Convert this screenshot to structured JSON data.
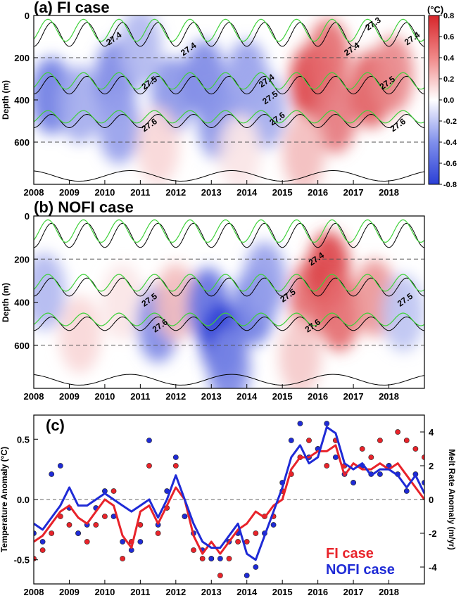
{
  "figure": {
    "panel_a_title": "(a) FI case",
    "panel_b_title": "(b) NOFI case",
    "panel_c_title": "(c)",
    "colorbar_unit": "(°C)",
    "colors": {
      "fi": "#e8232a",
      "nofi": "#1f2bd6",
      "warm": "#d7262b",
      "cold": "#2b3fd6",
      "green_contour": "#3fd13a"
    }
  },
  "chart_data": [
    {
      "type": "heatmap",
      "name": "FI case",
      "title": "(a) FI case",
      "xlabel": "",
      "ylabel": "Depth (m)",
      "x_ticks": [
        "2008",
        "2009",
        "2010",
        "2011",
        "2012",
        "2013",
        "2014",
        "2015",
        "2016",
        "2017",
        "2018"
      ],
      "y_ticks": [
        0,
        200,
        400,
        600
      ],
      "xlim": [
        2008,
        2019
      ],
      "ylim": [
        800,
        0
      ],
      "colorbar": {
        "ticks": [
          0.8,
          0.6,
          0.4,
          0.2,
          0.0,
          -0.2,
          -0.4,
          -0.6,
          -0.8
        ],
        "unit": "(°C)",
        "range": [
          -0.8,
          0.8
        ]
      },
      "anomaly_blobs": [
        {
          "t": 2008.5,
          "z": 380,
          "v": -0.55
        },
        {
          "t": 2009.3,
          "z": 420,
          "v": -0.35
        },
        {
          "t": 2010.3,
          "z": 300,
          "v": -0.5
        },
        {
          "t": 2010.4,
          "z": 520,
          "v": -0.4
        },
        {
          "t": 2011.0,
          "z": 150,
          "v": -0.3
        },
        {
          "t": 2011.9,
          "z": 380,
          "v": -0.45
        },
        {
          "t": 2012.8,
          "z": 300,
          "v": -0.5
        },
        {
          "t": 2013.2,
          "z": 500,
          "v": -0.45
        },
        {
          "t": 2014.0,
          "z": 300,
          "v": -0.4
        },
        {
          "t": 2014.5,
          "z": 450,
          "v": -0.35
        },
        {
          "t": 2011.5,
          "z": 620,
          "v": 0.15
        },
        {
          "t": 2013.8,
          "z": 650,
          "v": 0.1
        },
        {
          "t": 2015.8,
          "z": 320,
          "v": 0.7
        },
        {
          "t": 2016.3,
          "z": 200,
          "v": 0.55
        },
        {
          "t": 2016.5,
          "z": 470,
          "v": 0.5
        },
        {
          "t": 2017.5,
          "z": 350,
          "v": 0.6
        },
        {
          "t": 2018.1,
          "z": 280,
          "v": 0.45
        },
        {
          "t": 2015.6,
          "z": 650,
          "v": 0.25
        }
      ],
      "contours": [
        {
          "label": "27.3",
          "label_t": 2017.6,
          "label_z": 50
        },
        {
          "label": "27.4",
          "label_t": 2010.3,
          "label_z": 120
        },
        {
          "label": "27.4",
          "label_t": 2012.4,
          "label_z": 170
        },
        {
          "label": "27.4",
          "label_t": 2014.6,
          "label_z": 320
        },
        {
          "label": "27.4",
          "label_t": 2017.0,
          "label_z": 170
        },
        {
          "label": "27.4",
          "label_t": 2018.7,
          "label_z": 120
        },
        {
          "label": "27.5",
          "label_t": 2011.3,
          "label_z": 330
        },
        {
          "label": "27.5",
          "label_t": 2014.7,
          "label_z": 400
        },
        {
          "label": "27.5",
          "label_t": 2018.0,
          "label_z": 330
        },
        {
          "label": "27.6",
          "label_t": 2011.3,
          "label_z": 530
        },
        {
          "label": "27.6",
          "label_t": 2014.9,
          "label_z": 500
        },
        {
          "label": "27.6",
          "label_t": 2018.3,
          "label_z": 530
        }
      ],
      "reference_depths": [
        200,
        600
      ]
    },
    {
      "type": "heatmap",
      "name": "NOFI case",
      "title": "(b) NOFI case",
      "xlabel": "",
      "ylabel": "Depth (m)",
      "x_ticks": [
        "2008",
        "2009",
        "2010",
        "2011",
        "2012",
        "2013",
        "2014",
        "2015",
        "2016",
        "2017",
        "2018"
      ],
      "y_ticks": [
        0,
        200,
        400,
        600
      ],
      "xlim": [
        2008,
        2019
      ],
      "ylim": [
        800,
        0
      ],
      "anomaly_blobs": [
        {
          "t": 2008.3,
          "z": 350,
          "v": -0.3
        },
        {
          "t": 2009.3,
          "z": 550,
          "v": 0.15
        },
        {
          "t": 2010.5,
          "z": 400,
          "v": 0.1
        },
        {
          "t": 2011.5,
          "z": 500,
          "v": -0.5
        },
        {
          "t": 2012.0,
          "z": 400,
          "v": 0.25
        },
        {
          "t": 2012.9,
          "z": 420,
          "v": -0.6
        },
        {
          "t": 2013.3,
          "z": 580,
          "v": -0.8
        },
        {
          "t": 2013.5,
          "z": 700,
          "v": -0.5
        },
        {
          "t": 2014.2,
          "z": 420,
          "v": -0.55
        },
        {
          "t": 2014.5,
          "z": 300,
          "v": -0.4
        },
        {
          "t": 2015.8,
          "z": 380,
          "v": 0.55
        },
        {
          "t": 2016.3,
          "z": 250,
          "v": 0.7
        },
        {
          "t": 2016.6,
          "z": 450,
          "v": 0.55
        },
        {
          "t": 2017.6,
          "z": 380,
          "v": 0.4
        },
        {
          "t": 2015.5,
          "z": 650,
          "v": 0.2
        },
        {
          "t": 2018.4,
          "z": 450,
          "v": -0.25
        }
      ],
      "contours": [
        {
          "label": "27.4",
          "label_t": 2016.0,
          "label_z": 210
        },
        {
          "label": "27.5",
          "label_t": 2011.3,
          "label_z": 400
        },
        {
          "label": "27.5",
          "label_t": 2015.2,
          "label_z": 380
        },
        {
          "label": "27.5",
          "label_t": 2018.5,
          "label_z": 400
        },
        {
          "label": "27.6",
          "label_t": 2011.6,
          "label_z": 520
        },
        {
          "label": "27.6",
          "label_t": 2015.9,
          "label_z": 520
        }
      ],
      "reference_depths": [
        200,
        600
      ]
    },
    {
      "type": "line",
      "title": "(c)",
      "xlabel": "",
      "ylabel": "Temperature Anomaly (°C)",
      "y2label": "Melt Rate Anomaly (m/yr)",
      "x_ticks": [
        "2008",
        "2009",
        "2010",
        "2011",
        "2012",
        "2013",
        "2014",
        "2015",
        "2016",
        "2017",
        "2018"
      ],
      "xlim": [
        2008,
        2019
      ],
      "ylim": [
        -0.7,
        0.7
      ],
      "y_ticks": [
        0.5,
        0.0,
        -0.5
      ],
      "y_tick_labels": [
        "0.5",
        "0.0",
        "-0.5"
      ],
      "y2lim": [
        -5,
        5
      ],
      "y2_ticks": [
        4,
        2,
        0,
        -2,
        -4
      ],
      "legend": {
        "placement": "bottom-right",
        "entries": [
          "FI case",
          "NOFI case"
        ]
      },
      "x": [
        2008.0,
        2008.25,
        2008.5,
        2008.75,
        2009.0,
        2009.25,
        2009.5,
        2009.75,
        2010.0,
        2010.25,
        2010.5,
        2010.75,
        2011.0,
        2011.25,
        2011.5,
        2011.75,
        2012.0,
        2012.25,
        2012.5,
        2012.75,
        2013.0,
        2013.25,
        2013.5,
        2013.75,
        2014.0,
        2014.25,
        2014.5,
        2014.75,
        2015.0,
        2015.25,
        2015.5,
        2015.75,
        2016.0,
        2016.25,
        2016.5,
        2016.75,
        2017.0,
        2017.25,
        2017.5,
        2017.75,
        2018.0,
        2018.25,
        2018.5,
        2018.75,
        2019.0
      ],
      "series": [
        {
          "name": "FI case",
          "kind": "temperature_line",
          "values": [
            -0.35,
            -0.3,
            -0.2,
            -0.1,
            -0.05,
            -0.15,
            -0.2,
            -0.1,
            0.0,
            -0.05,
            -0.3,
            -0.4,
            -0.1,
            -0.05,
            -0.2,
            -0.05,
            0.1,
            0.0,
            -0.3,
            -0.45,
            -0.35,
            -0.45,
            -0.35,
            -0.25,
            -0.2,
            -0.1,
            -0.15,
            -0.05,
            0.0,
            0.25,
            0.35,
            0.35,
            0.4,
            0.4,
            0.45,
            0.2,
            0.3,
            0.25,
            0.25,
            0.3,
            0.25,
            0.3,
            0.2,
            0.1,
            0.0
          ]
        },
        {
          "name": "NOFI case",
          "kind": "temperature_line",
          "values": [
            -0.2,
            -0.25,
            -0.15,
            -0.05,
            0.1,
            -0.05,
            -0.05,
            0.0,
            0.05,
            0.0,
            -0.05,
            -0.1,
            -0.05,
            0.0,
            -0.15,
            0.0,
            0.2,
            0.0,
            -0.2,
            -0.35,
            -0.4,
            -0.4,
            -0.3,
            -0.2,
            -0.45,
            -0.5,
            -0.3,
            -0.1,
            0.1,
            0.35,
            0.45,
            0.3,
            0.35,
            0.6,
            0.55,
            0.3,
            0.25,
            0.3,
            0.2,
            0.25,
            0.25,
            0.2,
            0.1,
            0.2,
            0.05
          ]
        },
        {
          "name": "FI case",
          "kind": "melt_rate_dots",
          "values": [
            -3.5,
            -3.0,
            -2.0,
            -1.0,
            -1.5,
            -2.0,
            -2.5,
            -1.5,
            -1.0,
            0.5,
            -3.5,
            -2.5,
            -1.5,
            2.0,
            -2.0,
            -0.5,
            2.0,
            -1.0,
            -3.0,
            -3.5,
            -3.5,
            -4.5,
            -3.5,
            -2.5,
            -2.5,
            -2.0,
            -1.0,
            -1.0,
            0.5,
            1.5,
            2.5,
            3.5,
            3.0,
            2.0,
            3.5,
            2.0,
            1.0,
            3.0,
            2.5,
            3.5,
            2.0,
            4.0,
            3.5,
            3.0,
            2.5
          ]
        },
        {
          "name": "NOFI case",
          "kind": "melt_rate_dots",
          "values": [
            -2.0,
            -2.5,
            1.5,
            2.0,
            -0.5,
            -2.0,
            -1.5,
            -0.5,
            0.5,
            -1.0,
            -2.5,
            -3.0,
            -2.5,
            3.5,
            -1.5,
            0.5,
            2.5,
            -1.0,
            -2.0,
            -3.0,
            -3.5,
            -3.5,
            -2.5,
            -2.0,
            -4.5,
            -4.0,
            -2.0,
            -1.5,
            1.0,
            3.5,
            4.5,
            2.5,
            3.0,
            4.5,
            2.5,
            1.5,
            1.0,
            2.0,
            1.5,
            1.5,
            2.0,
            1.5,
            0.5,
            1.5,
            1.0
          ]
        }
      ]
    }
  ]
}
